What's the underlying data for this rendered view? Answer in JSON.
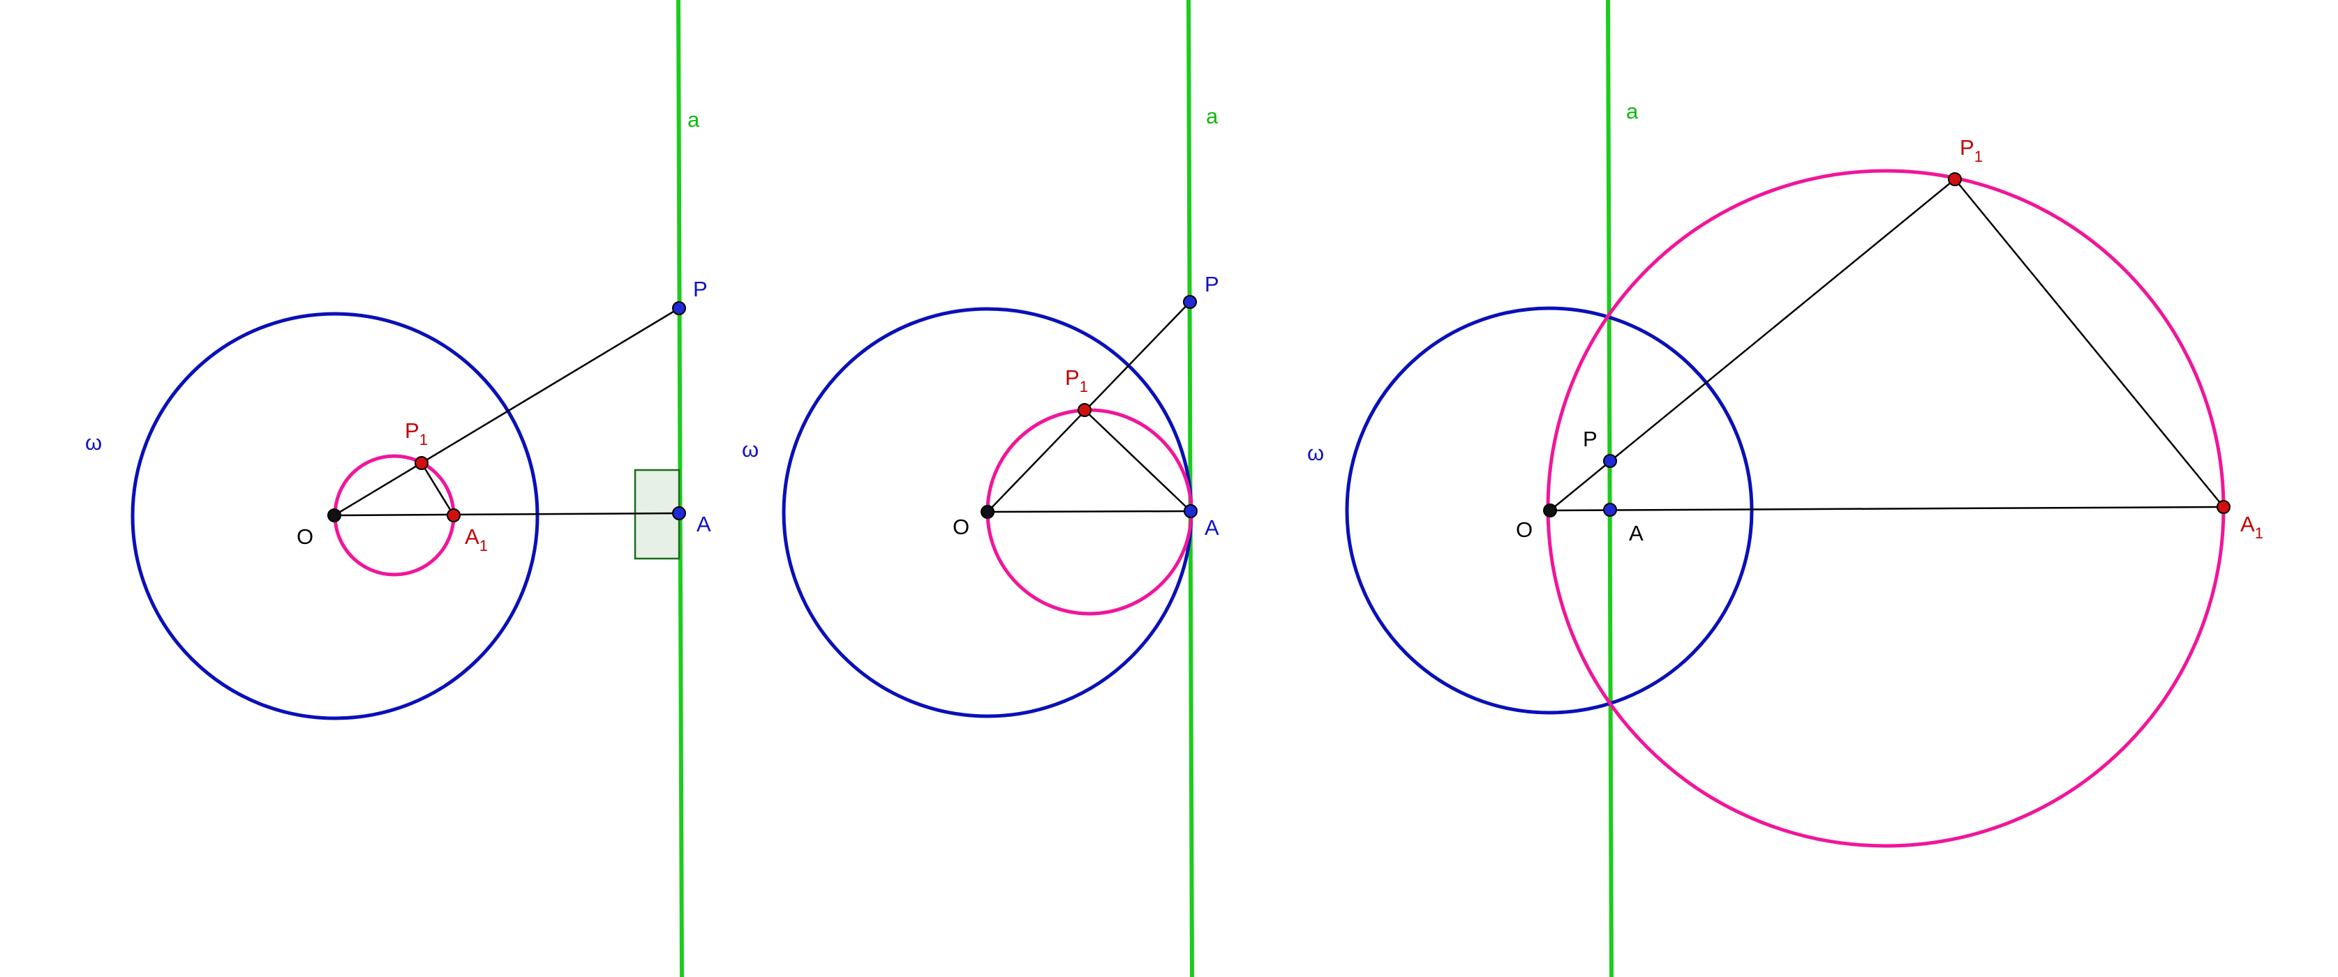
{
  "colors": {
    "circle_omega": "#0a10b8",
    "circle_inverse": "#f0169a",
    "line_a": "#1ccc1c",
    "segment": "#000000",
    "point_blue": "#1f2bd6",
    "point_red": "#d01010",
    "point_black": "#111111",
    "label_blue": "#1010c8",
    "label_red": "#c00000",
    "label_green": "#10b810",
    "label_black": "#000000",
    "right_angle_fill": "#e6f0e6",
    "right_angle_stroke": "#1a6a1a"
  },
  "panels": [
    {
      "line_label": "a",
      "omega_label": "ω",
      "O": {
        "label": "O"
      },
      "P": {
        "label": "P"
      },
      "A": {
        "label": "A"
      },
      "P1": {
        "label": "P",
        "sub": "1"
      },
      "A1": {
        "label": "A",
        "sub": "1"
      }
    },
    {
      "line_label": "a",
      "omega_label": "ω",
      "O": {
        "label": "O"
      },
      "P": {
        "label": "P"
      },
      "A": {
        "label": "A"
      },
      "P1": {
        "label": "P",
        "sub": "1"
      }
    },
    {
      "line_label": "a",
      "omega_label": "ω",
      "O": {
        "label": "O"
      },
      "P": {
        "label": "P"
      },
      "A": {
        "label": "A"
      },
      "P1": {
        "label": "P",
        "sub": "1"
      },
      "A1": {
        "label": "A",
        "sub": "1"
      }
    }
  ]
}
